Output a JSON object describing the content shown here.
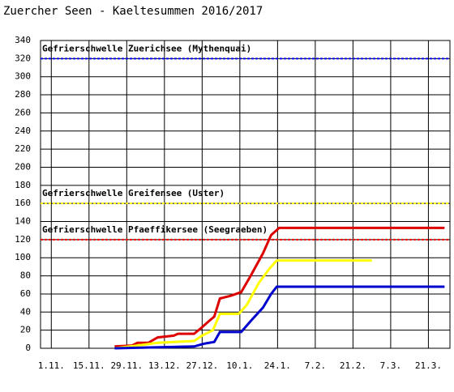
{
  "chart_data": {
    "type": "line",
    "title": "Zuercher Seen - Kaeltesummen 2016/2017",
    "xlim": [
      -4,
      148
    ],
    "ylim": [
      0,
      340
    ],
    "xticks": [
      {
        "value": 0,
        "label": "1.11."
      },
      {
        "value": 14,
        "label": "15.11."
      },
      {
        "value": 28,
        "label": "29.11."
      },
      {
        "value": 42,
        "label": "13.12."
      },
      {
        "value": 56,
        "label": "27.12."
      },
      {
        "value": 70,
        "label": "10.1."
      },
      {
        "value": 84,
        "label": "24.1."
      },
      {
        "value": 98,
        "label": "7.2."
      },
      {
        "value": 112,
        "label": "21.2."
      },
      {
        "value": 126,
        "label": "7.3."
      },
      {
        "value": 140,
        "label": "21.3."
      }
    ],
    "yticks": [
      0,
      20,
      40,
      60,
      80,
      100,
      120,
      140,
      160,
      180,
      200,
      220,
      240,
      260,
      280,
      300,
      320,
      340
    ],
    "grid": true,
    "thresholds": [
      {
        "text": "Gefrierschwelle Zuerichsee (Mythenquai)",
        "value": 320,
        "color": "#0000ff"
      },
      {
        "text": "Gefrierschwelle Greifensee (Uster)",
        "value": 160,
        "color": "#ffff00"
      },
      {
        "text": "Gefrierschwelle Pfaeffikersee (Seegraeben)",
        "value": 120,
        "color": "#ff0000"
      }
    ],
    "series": [
      {
        "color": "#dd0000",
        "x": [
          23.5,
          30,
          32,
          36,
          39.5,
          45.5,
          47,
          53,
          55.5,
          58.5,
          60.5,
          62.6,
          66.6,
          70.5,
          74,
          78.6,
          81.6,
          84.6,
          146
        ],
        "values": [
          2,
          3,
          6,
          6,
          12,
          14,
          16,
          16,
          22,
          30,
          35,
          55,
          58,
          62,
          80,
          105,
          125,
          133,
          133
        ]
      },
      {
        "color": "#ffff00",
        "x": [
          23.5,
          32,
          39.5,
          53,
          56,
          60,
          62.6,
          69.6,
          72.6,
          77,
          81,
          83.7,
          119
        ],
        "values": [
          0,
          3,
          6,
          8,
          14,
          20,
          38,
          38,
          48,
          72,
          88,
          97,
          97
        ]
      },
      {
        "color": "#0000cc",
        "x": [
          23.5,
          53,
          56.6,
          60.5,
          62.6,
          70.5,
          74,
          78.6,
          81.6,
          83.7,
          146
        ],
        "values": [
          0,
          2,
          5,
          7,
          18,
          18,
          30,
          45,
          60,
          68,
          68
        ]
      }
    ]
  }
}
